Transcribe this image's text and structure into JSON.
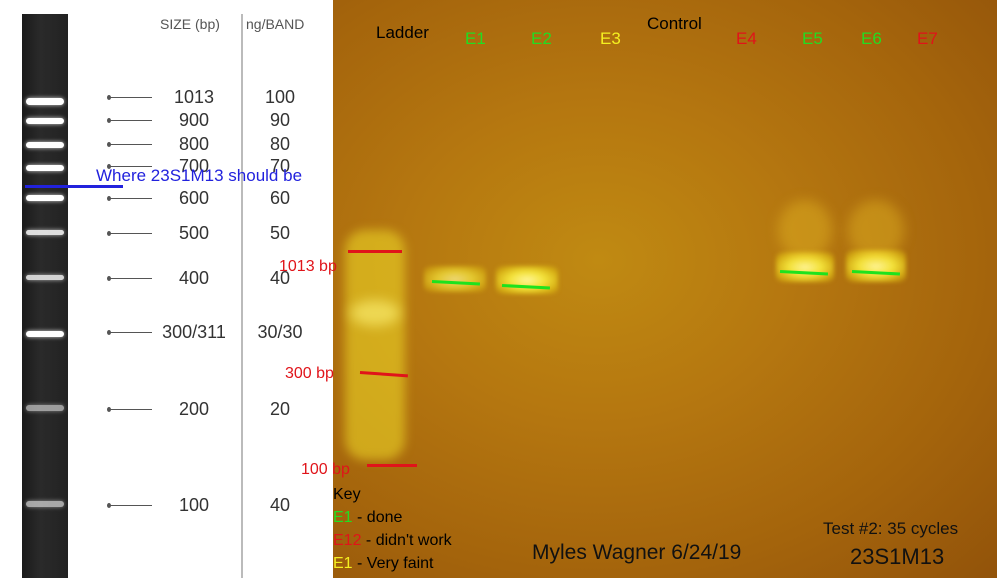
{
  "ladder_reference": {
    "header_size": "SIZE (bp)",
    "header_ng": "ng/BAND",
    "bands": [
      {
        "size": "1013",
        "ng": "100"
      },
      {
        "size": "900",
        "ng": "90"
      },
      {
        "size": "800",
        "ng": "80"
      },
      {
        "size": "700",
        "ng": "70"
      },
      {
        "size": "600",
        "ng": "60"
      },
      {
        "size": "500",
        "ng": "50"
      },
      {
        "size": "400",
        "ng": "40"
      },
      {
        "size": "300/311",
        "ng": "30/30"
      },
      {
        "size": "200",
        "ng": "20"
      },
      {
        "size": "100",
        "ng": "40"
      }
    ],
    "annotation": "Where 23S1M13 should be"
  },
  "gel": {
    "lane_labels": [
      {
        "text": "Ladder",
        "color": "#000000"
      },
      {
        "text": "E1",
        "color": "#22dd22"
      },
      {
        "text": "E2",
        "color": "#22dd22"
      },
      {
        "text": "E3",
        "color": "#f5f020"
      },
      {
        "text": "Control",
        "color": "#000000"
      },
      {
        "text": "E4",
        "color": "#e0141a"
      },
      {
        "text": "E5",
        "color": "#22dd22"
      },
      {
        "text": "E6",
        "color": "#22dd22"
      },
      {
        "text": "E7",
        "color": "#e0141a"
      }
    ],
    "markers": [
      {
        "text": "1013 bp"
      },
      {
        "text": "300 bp"
      },
      {
        "text": "100 bp"
      }
    ],
    "key": {
      "title": "Key",
      "items": [
        {
          "code": "E1",
          "code_color": "#22dd22",
          "desc": " - done"
        },
        {
          "code": "E12",
          "code_color": "#e0141a",
          "desc": " - didn't work"
        },
        {
          "code": "E1",
          "code_color": "#f5f020",
          "desc": " - Very faint"
        }
      ]
    },
    "author": "Myles Wagner 6/24/19",
    "test": "Test #2: 35 cycles",
    "sample": "23S1M13"
  }
}
